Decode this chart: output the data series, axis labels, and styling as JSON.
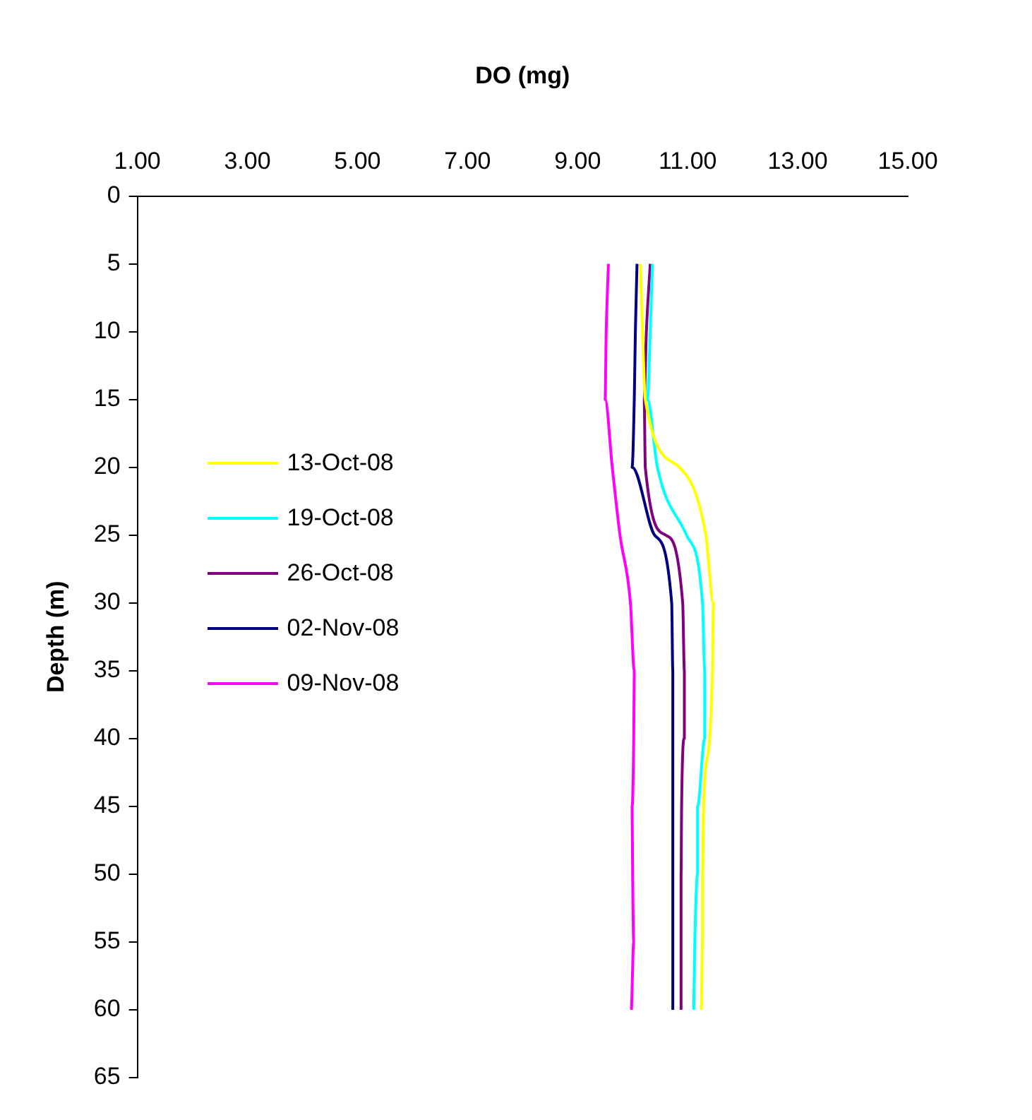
{
  "chart_data": {
    "type": "line",
    "xlabel": "DO (mg)",
    "ylabel": "Depth (m)",
    "xlim": [
      1,
      15
    ],
    "xticks": [
      {
        "value": 1,
        "label": "1.00"
      },
      {
        "value": 3,
        "label": "3.00"
      },
      {
        "value": 5,
        "label": "5.00"
      },
      {
        "value": 7,
        "label": "7.00"
      },
      {
        "value": 9,
        "label": "9.00"
      },
      {
        "value": 11,
        "label": "11.00"
      },
      {
        "value": 13,
        "label": "13.00"
      },
      {
        "value": 15,
        "label": "15.00"
      }
    ],
    "ylim": [
      65,
      0
    ],
    "yticks": [
      0,
      5,
      10,
      15,
      20,
      25,
      30,
      35,
      40,
      45,
      50,
      55,
      60,
      65
    ],
    "grid": false,
    "legend": "left",
    "marker": "none",
    "line_style": "solid",
    "series": [
      {
        "name": "13-Oct-08",
        "color": "#ffff00",
        "x": [
          10.14,
          10.18,
          10.23,
          10.85,
          11.33,
          11.47,
          11.45,
          11.4,
          11.29,
          11.27,
          11.27,
          11.25
        ],
        "values": [
          5,
          10,
          15,
          20,
          25,
          30,
          35,
          40,
          45,
          50,
          55,
          60
        ]
      },
      {
        "name": "19-Oct-08",
        "color": "#00ffff",
        "x": [
          10.36,
          10.32,
          10.27,
          10.45,
          10.98,
          11.27,
          11.31,
          11.31,
          11.18,
          11.18,
          11.13,
          11.11
        ],
        "values": [
          5,
          10,
          15,
          20,
          25,
          30,
          35,
          40,
          45,
          50,
          55,
          60
        ]
      },
      {
        "name": "26-Oct-08",
        "color": "#800080",
        "x": [
          10.32,
          10.25,
          10.21,
          10.23,
          10.6,
          10.91,
          10.94,
          10.94,
          10.89,
          10.88,
          10.88,
          10.88
        ],
        "values": [
          5,
          10,
          15,
          20,
          25,
          30,
          35,
          40,
          45,
          50,
          55,
          60
        ]
      },
      {
        "name": "02-Nov-08",
        "color": "#000080",
        "x": [
          10.08,
          10.05,
          10.03,
          9.99,
          10.4,
          10.71,
          10.73,
          10.73,
          10.73,
          10.73,
          10.73,
          10.73
        ],
        "values": [
          5,
          10,
          15,
          20,
          25,
          30,
          35,
          40,
          45,
          50,
          55,
          60
        ]
      },
      {
        "name": "09-Nov-08",
        "color": "#ff00ff",
        "x": [
          9.56,
          9.52,
          9.5,
          9.63,
          9.77,
          9.96,
          10.03,
          10.02,
          9.99,
          10.0,
          10.02,
          9.98
        ],
        "values": [
          5,
          10,
          15,
          20,
          25,
          30,
          35,
          40,
          45,
          50,
          55,
          60
        ]
      }
    ]
  }
}
